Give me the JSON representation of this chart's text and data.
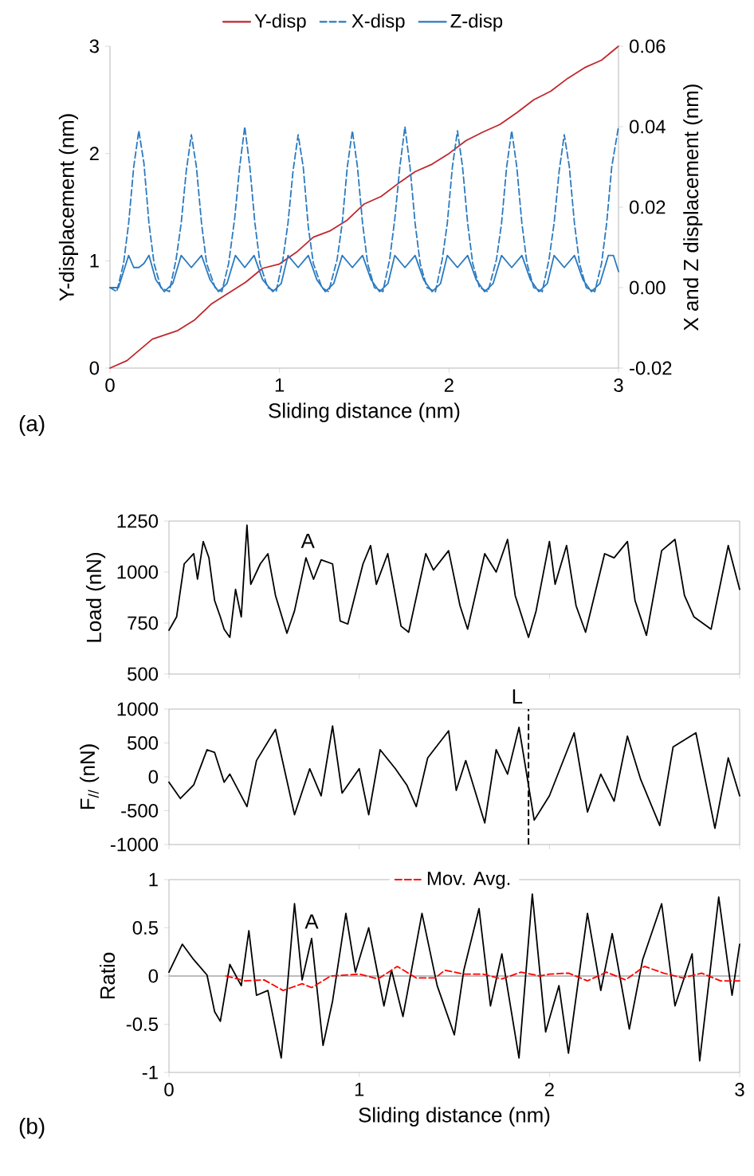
{
  "chart_data": [
    {
      "type": "line",
      "xlabel": "Sliding distance (nm)",
      "ylabel": "Y-displacement (nm)",
      "y2label": "X and Z displacement (nm)",
      "xlim": [
        0,
        3
      ],
      "xticks": [
        0,
        1,
        2,
        3
      ],
      "ylim": [
        0,
        3
      ],
      "yticks": [
        0,
        1,
        2,
        3
      ],
      "y2lim": [
        -0.02,
        0.06
      ],
      "y2ticks": [
        -0.02,
        {
          "value": 0,
          "label": "0.00"
        },
        0.02,
        0.04,
        0.06
      ],
      "legend": "top",
      "annotations": [
        "(a)"
      ],
      "series": [
        {
          "name": "Y-disp",
          "color": "#c0272d",
          "x": [
            0,
            0.1,
            0.25,
            0.4,
            0.5,
            0.6,
            0.8,
            0.9,
            1.0,
            1.1,
            1.2,
            1.3,
            1.4,
            1.5,
            1.6,
            1.7,
            1.8,
            1.9,
            2.0,
            2.1,
            2.2,
            2.3,
            2.4,
            2.5,
            2.6,
            2.7,
            2.8,
            2.9,
            3.0
          ],
          "values": [
            0,
            0.07,
            0.27,
            0.35,
            0.45,
            0.6,
            0.8,
            0.93,
            0.97,
            1.08,
            1.22,
            1.28,
            1.38,
            1.53,
            1.6,
            1.72,
            1.83,
            1.9,
            2.0,
            2.12,
            2.2,
            2.27,
            2.38,
            2.5,
            2.58,
            2.7,
            2.8,
            2.87,
            3.0
          ]
        },
        {
          "name": "X-disp",
          "color": "#2a7ac0",
          "axis": "y2",
          "line_style": "dashed",
          "x": [
            0,
            0.04,
            0.08,
            0.11,
            0.14,
            0.17,
            0.2,
            0.23,
            0.26,
            0.3,
            0.35,
            0.39,
            0.42,
            0.45,
            0.48,
            0.51,
            0.54,
            0.57,
            0.62,
            0.66,
            0.7,
            0.735,
            0.765,
            0.795,
            0.825,
            0.855,
            0.885,
            0.93,
            0.98,
            1.02,
            1.05,
            1.08,
            1.11,
            1.14,
            1.17,
            1.2,
            1.25,
            1.29,
            1.34,
            1.37,
            1.4,
            1.43,
            1.46,
            1.49,
            1.52,
            1.56,
            1.61,
            1.65,
            1.68,
            1.71,
            1.74,
            1.77,
            1.8,
            1.83,
            1.87,
            1.92,
            1.96,
            1.99,
            2.02,
            2.05,
            2.08,
            2.11,
            2.14,
            2.18,
            2.23,
            2.28,
            2.31,
            2.34,
            2.37,
            2.4,
            2.43,
            2.46,
            2.5,
            2.55,
            2.59,
            2.62,
            2.65,
            2.68,
            2.71,
            2.74,
            2.77,
            2.81,
            2.86,
            2.9,
            2.93,
            2.96,
            3.0
          ],
          "values": [
            0,
            -0.001,
            0.006,
            0.016,
            0.03,
            0.039,
            0.031,
            0.016,
            0.006,
            0,
            -0.001,
            0.007,
            0.016,
            0.029,
            0.038,
            0.03,
            0.016,
            0.006,
            0,
            -0.001,
            0.006,
            0.017,
            0.03,
            0.04,
            0.03,
            0.016,
            0.006,
            0,
            -0.001,
            0.007,
            0.016,
            0.029,
            0.038,
            0.03,
            0.015,
            0.006,
            0,
            -0.001,
            0.007,
            0.016,
            0.03,
            0.039,
            0.03,
            0.016,
            0.006,
            0,
            -0.001,
            0.007,
            0.017,
            0.03,
            0.04,
            0.03,
            0.016,
            0.006,
            0,
            -0.001,
            0.007,
            0.016,
            0.03,
            0.039,
            0.03,
            0.016,
            0.006,
            0,
            -0.001,
            0.007,
            0.016,
            0.03,
            0.039,
            0.03,
            0.016,
            0.006,
            0,
            -0.001,
            0.007,
            0.016,
            0.029,
            0.038,
            0.03,
            0.016,
            0.006,
            0,
            -0.001,
            0.006,
            0.016,
            0.03,
            0.04
          ]
        },
        {
          "name": "Z-disp",
          "color": "#2a7ac0",
          "axis": "y2",
          "x": [
            0,
            0.05,
            0.11,
            0.14,
            0.17,
            0.2,
            0.23,
            0.27,
            0.32,
            0.37,
            0.42,
            0.48,
            0.54,
            0.59,
            0.64,
            0.69,
            0.74,
            0.795,
            0.85,
            0.9,
            0.96,
            1.01,
            1.05,
            1.11,
            1.17,
            1.22,
            1.27,
            1.32,
            1.37,
            1.43,
            1.49,
            1.54,
            1.59,
            1.64,
            1.68,
            1.74,
            1.8,
            1.85,
            1.9,
            1.95,
            1.99,
            2.05,
            2.11,
            2.16,
            2.21,
            2.26,
            2.31,
            2.37,
            2.43,
            2.48,
            2.53,
            2.58,
            2.62,
            2.68,
            2.74,
            2.79,
            2.84,
            2.89,
            2.94,
            2.97,
            3.0
          ],
          "values": [
            0,
            0,
            0.008,
            0.005,
            0.005,
            0.006,
            0.008,
            0.002,
            -0.001,
            0.001,
            0.008,
            0.005,
            0.008,
            0.002,
            -0.001,
            0.001,
            0.008,
            0.005,
            0.008,
            0.002,
            -0.001,
            0.001,
            0.008,
            0.005,
            0.008,
            0.002,
            -0.001,
            0.001,
            0.008,
            0.005,
            0.008,
            0.002,
            -0.001,
            0.001,
            0.008,
            0.005,
            0.008,
            0.002,
            -0.001,
            0.001,
            0.008,
            0.005,
            0.008,
            0.002,
            -0.001,
            0.001,
            0.008,
            0.005,
            0.008,
            0.002,
            -0.001,
            0.001,
            0.008,
            0.005,
            0.008,
            0.002,
            -0.001,
            0.001,
            0.008,
            0.008,
            0.004
          ]
        }
      ]
    },
    {
      "type": "line",
      "ylabel": "Load (nN)",
      "xlim": [
        0,
        3
      ],
      "xticks": [
        0,
        1,
        2,
        3
      ],
      "ylim": [
        500,
        1250
      ],
      "yticks": [
        500,
        750,
        1000,
        1250
      ],
      "tick_labels": "y",
      "annotations": [
        {
          "text": "A",
          "x": 0.73,
          "y": 1070
        }
      ],
      "series": [
        {
          "color": "#000000",
          "x": [
            0,
            0.04,
            0.08,
            0.13,
            0.15,
            0.18,
            0.21,
            0.24,
            0.27,
            0.29,
            0.32,
            0.35,
            0.38,
            0.41,
            0.43,
            0.48,
            0.52,
            0.56,
            0.62,
            0.66,
            0.72,
            0.76,
            0.8,
            0.86,
            0.9,
            0.94,
            1.02,
            1.06,
            1.09,
            1.15,
            1.22,
            1.26,
            1.35,
            1.39,
            1.47,
            1.53,
            1.57,
            1.66,
            1.72,
            1.78,
            1.82,
            1.89,
            1.93,
            2.0,
            2.03,
            2.09,
            2.14,
            2.19,
            2.29,
            2.34,
            2.41,
            2.45,
            2.51,
            2.59,
            2.66,
            2.71,
            2.76,
            2.85,
            2.94,
            3.0
          ],
          "values": [
            715,
            780,
            1040,
            1090,
            965,
            1150,
            1070,
            860,
            780,
            720,
            680,
            915,
            780,
            1230,
            940,
            1040,
            1090,
            885,
            700,
            810,
            1070,
            965,
            1060,
            1040,
            760,
            745,
            1040,
            1130,
            940,
            1090,
            735,
            705,
            1090,
            1010,
            1105,
            835,
            720,
            1090,
            1000,
            1160,
            885,
            680,
            810,
            1150,
            940,
            1130,
            835,
            705,
            1090,
            1070,
            1150,
            860,
            690,
            1105,
            1160,
            885,
            780,
            720,
            1130,
            915
          ]
        }
      ]
    },
    {
      "type": "line",
      "ylabel": "F$_{//}$ (nN)",
      "xlim": [
        0,
        3
      ],
      "xticks": [
        0,
        1,
        2,
        3
      ],
      "ylim": [
        -1000,
        1000
      ],
      "yticks": [
        -1000,
        -500,
        0,
        500,
        1000
      ],
      "tick_labels": "y",
      "ref_lines": [
        {
          "axis": "x",
          "value": 1.89,
          "label": "L",
          "line_style": "dashed",
          "color": "#000000"
        }
      ],
      "series": [
        {
          "color": "#000000",
          "x": [
            0,
            0.06,
            0.13,
            0.2,
            0.24,
            0.29,
            0.32,
            0.41,
            0.46,
            0.56,
            0.66,
            0.74,
            0.8,
            0.86,
            0.91,
            1.0,
            1.05,
            1.11,
            1.19,
            1.25,
            1.3,
            1.36,
            1.47,
            1.51,
            1.56,
            1.66,
            1.72,
            1.78,
            1.84,
            1.92,
            2.0,
            2.13,
            2.2,
            2.27,
            2.34,
            2.41,
            2.48,
            2.58,
            2.65,
            2.77,
            2.87,
            2.94,
            3.0
          ],
          "values": [
            -80,
            -320,
            -120,
            400,
            360,
            -80,
            40,
            -440,
            240,
            700,
            -560,
            120,
            -280,
            750,
            -240,
            120,
            -560,
            400,
            120,
            -120,
            -440,
            280,
            680,
            -200,
            240,
            -680,
            400,
            40,
            730,
            -640,
            -280,
            650,
            -520,
            40,
            -360,
            600,
            -40,
            -720,
            440,
            650,
            -760,
            280,
            -280
          ]
        }
      ]
    },
    {
      "type": "line",
      "xlabel": "Sliding distance (nm)",
      "ylabel": "Ratio",
      "xlim": [
        0,
        3
      ],
      "xticks": [
        0,
        1,
        2,
        3
      ],
      "ylim": [
        -1,
        1
      ],
      "yticks": [
        -1,
        -0.5,
        0,
        0.5,
        1
      ],
      "legend": "top",
      "annotations": [
        {
          "text": "A",
          "x": 0.75,
          "y": 0.39
        },
        "(b)"
      ],
      "ref_lines": [
        {
          "axis": "y",
          "value": 0,
          "color": "#a6a6a6"
        }
      ],
      "series": [
        {
          "color": "#000000",
          "x": [
            0,
            0.07,
            0.13,
            0.2,
            0.24,
            0.27,
            0.32,
            0.38,
            0.42,
            0.46,
            0.52,
            0.59,
            0.66,
            0.7,
            0.75,
            0.81,
            0.86,
            0.93,
            0.98,
            1.05,
            1.13,
            1.17,
            1.23,
            1.33,
            1.41,
            1.5,
            1.55,
            1.63,
            1.69,
            1.75,
            1.84,
            1.91,
            1.98,
            2.05,
            2.1,
            2.2,
            2.27,
            2.33,
            2.42,
            2.49,
            2.59,
            2.66,
            2.75,
            2.79,
            2.89,
            2.96,
            3.0
          ],
          "values": [
            0.04,
            0.33,
            0.17,
            0.01,
            -0.37,
            -0.47,
            0.12,
            -0.1,
            0.47,
            -0.2,
            -0.15,
            -0.85,
            0.75,
            -0.04,
            0.39,
            -0.72,
            -0.26,
            0.65,
            0.04,
            0.5,
            -0.31,
            0.06,
            -0.42,
            0.65,
            -0.1,
            -0.61,
            0.06,
            0.7,
            -0.31,
            0.23,
            -0.85,
            0.85,
            -0.58,
            -0.1,
            -0.8,
            0.65,
            -0.15,
            0.44,
            -0.55,
            0.17,
            0.75,
            -0.31,
            0.23,
            -0.88,
            0.82,
            -0.2,
            0.33
          ]
        },
        {
          "name": "Mov. Avg.",
          "color": "#ff0000",
          "line_style": "dashed",
          "x": [
            0.3,
            0.4,
            0.5,
            0.6,
            0.7,
            0.75,
            0.85,
            1.0,
            1.1,
            1.2,
            1.3,
            1.4,
            1.45,
            1.55,
            1.65,
            1.75,
            1.85,
            1.95,
            2.0,
            2.1,
            2.2,
            2.3,
            2.4,
            2.5,
            2.6,
            2.7,
            2.8,
            2.9,
            3.0
          ],
          "values": [
            0,
            -0.05,
            -0.04,
            -0.15,
            -0.08,
            -0.12,
            0,
            0.02,
            -0.03,
            0.1,
            -0.02,
            -0.02,
            0.06,
            0.02,
            0.02,
            -0.03,
            0.04,
            0,
            0.02,
            0.03,
            -0.05,
            0.04,
            -0.04,
            0.1,
            0.03,
            -0.02,
            0.03,
            -0.05,
            -0.05
          ]
        }
      ]
    }
  ]
}
